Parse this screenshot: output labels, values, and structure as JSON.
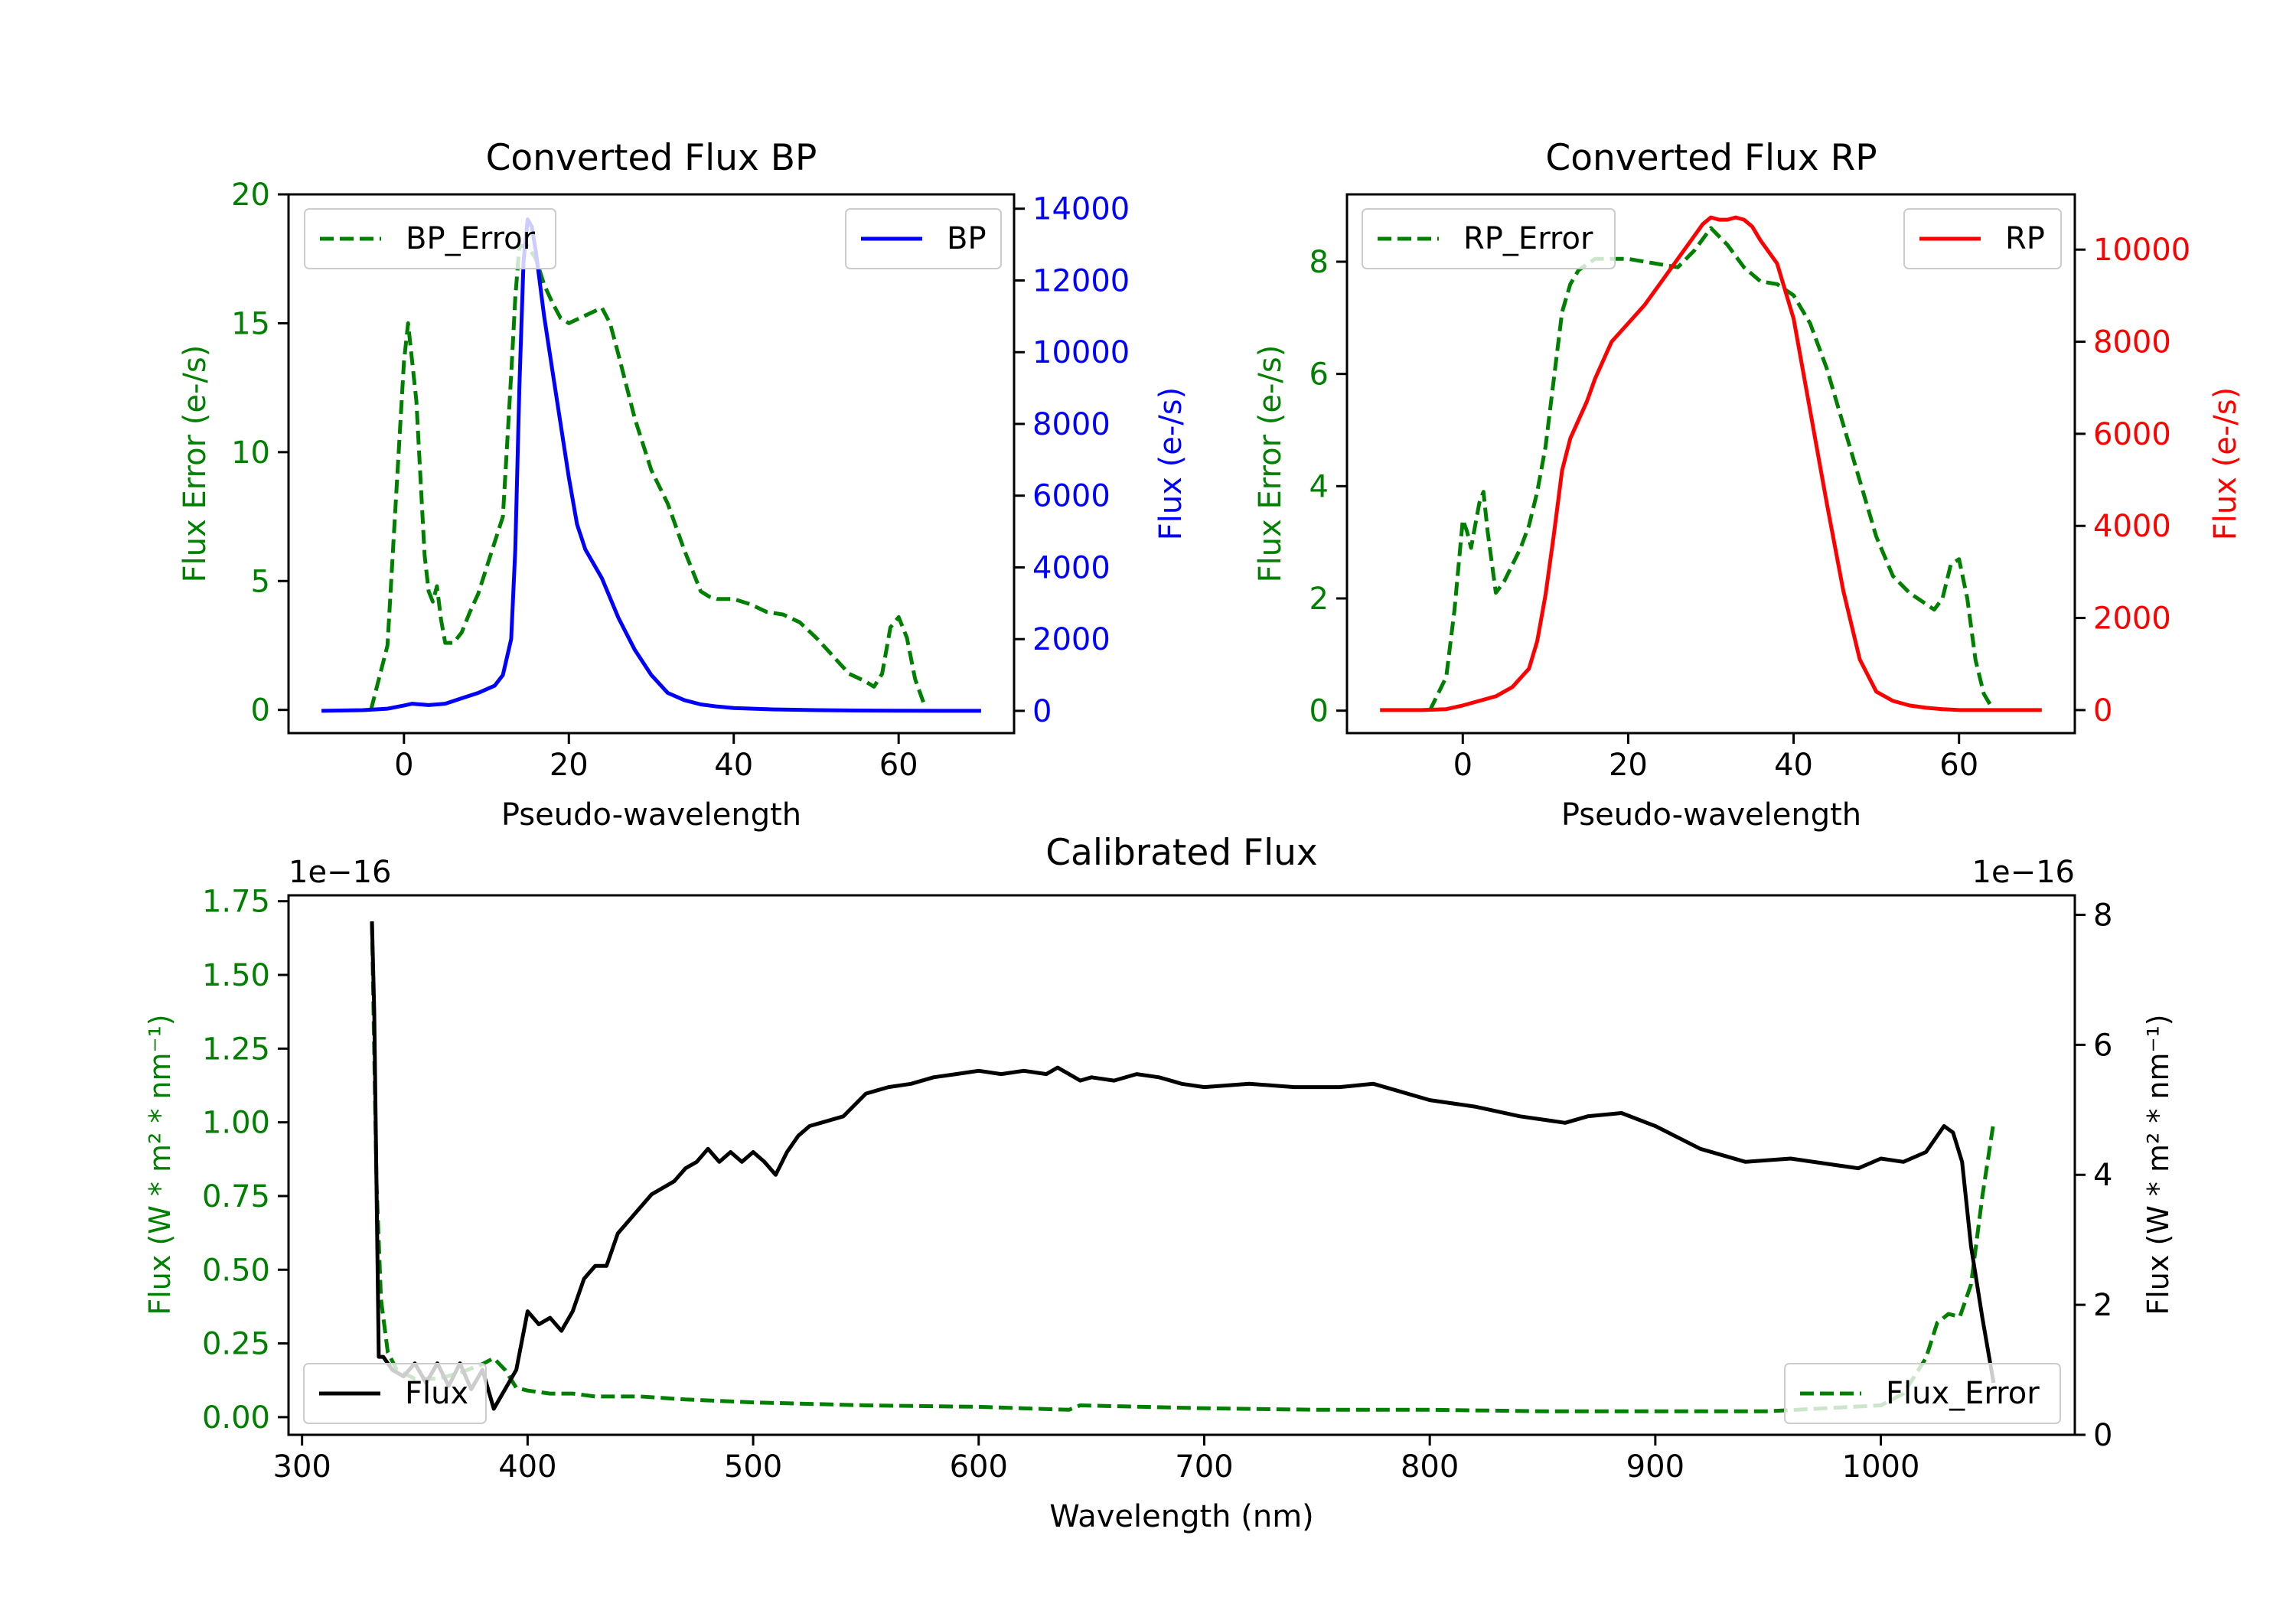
{
  "colors": {
    "bp": "#0000ff",
    "rp": "#ff0000",
    "error": "#008000",
    "flux": "#000000",
    "axis": "#000000"
  },
  "chart_data": [
    {
      "type": "line",
      "title": "Converted Flux BP",
      "xlabel": "Pseudo-wavelength",
      "ylabel": "Flux Error (e-/s)",
      "ylabel_right": "Flux (e-/s)",
      "xlim": [
        -14,
        74
      ],
      "ylim": [
        -0.9,
        20
      ],
      "ylim_right": [
        -620,
        14400
      ],
      "xticks": [
        0,
        20,
        40,
        60
      ],
      "yticks": [
        0,
        5,
        10,
        15,
        20
      ],
      "yticks_right": [
        0,
        2000,
        4000,
        6000,
        8000,
        10000,
        12000,
        14000
      ],
      "series": [
        {
          "name": "BP_Error",
          "axis": "left",
          "style": "dashed",
          "legend": "top-left",
          "x": [
            -4,
            -2,
            -1,
            0,
            0.5,
            1.5,
            2.5,
            3,
            3.5,
            4,
            4.5,
            5,
            6,
            7,
            8,
            9,
            10,
            11,
            12,
            13,
            13.5,
            14,
            15,
            16,
            17,
            18,
            19,
            20,
            22,
            24,
            25,
            26,
            28,
            30,
            32,
            34,
            36,
            37,
            38,
            40,
            42,
            44,
            46,
            48,
            50,
            52,
            54,
            56,
            57,
            58,
            59,
            60,
            61,
            62,
            63
          ],
          "y": [
            0,
            2.5,
            8,
            13.5,
            15,
            12,
            6,
            4.6,
            4.2,
            4.8,
            3.5,
            2.6,
            2.6,
            3,
            3.8,
            4.5,
            5.5,
            6.5,
            7.5,
            13,
            16,
            18,
            18,
            17.5,
            16.5,
            15.8,
            15.2,
            15,
            15.3,
            15.6,
            15,
            13.8,
            11.3,
            9.3,
            8,
            6.2,
            4.6,
            4.4,
            4.3,
            4.3,
            4.1,
            3.8,
            3.7,
            3.4,
            2.8,
            2.1,
            1.4,
            1.1,
            0.9,
            1.4,
            3.2,
            3.6,
            2.8,
            1.2,
            0.3
          ]
        },
        {
          "name": "BP",
          "axis": "right",
          "style": "solid",
          "legend": "top-right",
          "x": [
            -10,
            -5,
            -2,
            0,
            1,
            2,
            3,
            5,
            7,
            9,
            11,
            12,
            13,
            13.5,
            14,
            14.5,
            15,
            15.5,
            16,
            17,
            18,
            19,
            20,
            21,
            22,
            24,
            26,
            28,
            30,
            32,
            34,
            36,
            38,
            40,
            45,
            50,
            55,
            60,
            65,
            70
          ],
          "y": [
            0,
            20,
            60,
            150,
            200,
            180,
            160,
            200,
            350,
            500,
            700,
            1000,
            2000,
            4500,
            9000,
            12500,
            13700,
            13500,
            12800,
            11000,
            9500,
            8000,
            6500,
            5200,
            4500,
            3700,
            2600,
            1700,
            1000,
            500,
            300,
            180,
            120,
            80,
            40,
            20,
            10,
            5,
            0,
            0
          ]
        }
      ]
    },
    {
      "type": "line",
      "title": "Converted Flux RP",
      "xlabel": "Pseudo-wavelength",
      "ylabel": "Flux Error (e-/s)",
      "ylabel_right": "Flux (e-/s)",
      "xlim": [
        -14,
        74
      ],
      "ylim": [
        -0.4,
        9.2
      ],
      "ylim_right": [
        -500,
        11200
      ],
      "xticks": [
        0,
        20,
        40,
        60
      ],
      "yticks": [
        0,
        2,
        4,
        6,
        8
      ],
      "yticks_right": [
        0,
        2000,
        4000,
        6000,
        8000,
        10000
      ],
      "series": [
        {
          "name": "RP_Error",
          "axis": "left",
          "style": "dashed",
          "legend": "top-left",
          "x": [
            -4,
            -2,
            -1,
            0,
            0.5,
            1,
            2,
            2.5,
            3,
            4,
            5,
            6,
            7,
            8,
            9,
            10,
            11,
            12,
            13,
            14,
            15,
            16,
            18,
            20,
            22,
            24,
            26,
            28,
            30,
            32,
            34,
            36,
            38,
            40,
            42,
            44,
            46,
            48,
            50,
            52,
            54,
            56,
            57,
            58,
            59,
            60,
            61,
            62,
            63,
            64
          ],
          "y": [
            0,
            0.6,
            1.8,
            3.4,
            3.2,
            2.9,
            3.7,
            3.9,
            3.2,
            2.1,
            2.3,
            2.6,
            2.9,
            3.3,
            3.9,
            4.7,
            5.9,
            7.1,
            7.6,
            7.85,
            7.95,
            8.05,
            8.05,
            8.05,
            8.0,
            7.95,
            7.9,
            8.2,
            8.6,
            8.3,
            7.9,
            7.65,
            7.6,
            7.4,
            6.9,
            6.1,
            5.1,
            4.1,
            3.1,
            2.4,
            2.1,
            1.9,
            1.8,
            2.0,
            2.6,
            2.7,
            2.0,
            0.9,
            0.3,
            0.05
          ]
        },
        {
          "name": "RP",
          "axis": "right",
          "style": "solid",
          "legend": "top-right",
          "x": [
            -10,
            -5,
            -2,
            0,
            2,
            4,
            6,
            8,
            9,
            10,
            11,
            12,
            13,
            14,
            15,
            16,
            18,
            20,
            22,
            24,
            26,
            28,
            29,
            30,
            31,
            32,
            33,
            34,
            35,
            36,
            38,
            40,
            42,
            44,
            46,
            48,
            50,
            52,
            54,
            56,
            58,
            60,
            65,
            70
          ],
          "y": [
            0,
            0,
            20,
            100,
            200,
            300,
            500,
            900,
            1500,
            2500,
            3800,
            5200,
            5900,
            6300,
            6700,
            7200,
            8000,
            8400,
            8800,
            9300,
            9800,
            10300,
            10550,
            10700,
            10650,
            10650,
            10700,
            10650,
            10500,
            10200,
            9700,
            8500,
            6500,
            4500,
            2600,
            1100,
            400,
            200,
            100,
            50,
            20,
            0,
            0,
            0
          ]
        }
      ]
    },
    {
      "type": "line",
      "title": "Calibrated Flux",
      "xlabel": "Wavelength (nm)",
      "ylabel": "Flux (W * m² * nm⁻¹)",
      "ylabel_right": "Flux (W * m² * nm⁻¹)",
      "offset_left": "1e−16",
      "offset_right": "1e−16",
      "xlim": [
        294,
        1086
      ],
      "ylim": [
        -0.06,
        1.77
      ],
      "ylim_right": [
        0,
        8.3
      ],
      "xticks": [
        300,
        400,
        500,
        600,
        700,
        800,
        900,
        1000
      ],
      "yticks": [
        "0.00",
        "0.25",
        "0.50",
        "0.75",
        "1.00",
        "1.25",
        "1.50",
        "1.75"
      ],
      "yticks_right": [
        0,
        2,
        4,
        6,
        8
      ],
      "series": [
        {
          "name": "Flux_Error",
          "axis": "left",
          "style": "dashed",
          "legend": "bottom-right",
          "x": [
            331,
            333,
            335,
            338,
            342,
            350,
            360,
            370,
            380,
            385,
            390,
            395,
            400,
            410,
            420,
            430,
            450,
            470,
            500,
            550,
            600,
            640,
            645,
            700,
            750,
            800,
            850,
            900,
            950,
            1000,
            1010,
            1020,
            1025,
            1030,
            1035,
            1040,
            1045,
            1050
          ],
          "y": [
            1.68,
            0.8,
            0.4,
            0.22,
            0.16,
            0.13,
            0.13,
            0.15,
            0.18,
            0.2,
            0.16,
            0.1,
            0.09,
            0.08,
            0.08,
            0.07,
            0.07,
            0.06,
            0.05,
            0.04,
            0.035,
            0.025,
            0.04,
            0.03,
            0.025,
            0.025,
            0.02,
            0.02,
            0.02,
            0.04,
            0.08,
            0.2,
            0.32,
            0.35,
            0.34,
            0.45,
            0.75,
            1.0
          ]
        },
        {
          "name": "Flux",
          "axis": "right",
          "style": "solid",
          "legend": "bottom-left",
          "x": [
            331,
            332,
            334,
            336,
            340,
            345,
            350,
            355,
            360,
            365,
            370,
            375,
            380,
            385,
            390,
            395,
            400,
            405,
            410,
            415,
            420,
            425,
            430,
            435,
            440,
            445,
            450,
            455,
            460,
            465,
            470,
            475,
            480,
            485,
            490,
            495,
            500,
            505,
            510,
            515,
            520,
            525,
            530,
            540,
            550,
            560,
            570,
            580,
            590,
            600,
            610,
            620,
            630,
            635,
            640,
            645,
            650,
            660,
            670,
            680,
            690,
            700,
            720,
            740,
            760,
            775,
            785,
            800,
            820,
            840,
            850,
            860,
            870,
            885,
            900,
            920,
            940,
            960,
            980,
            990,
            1000,
            1010,
            1020,
            1028,
            1032,
            1036,
            1040,
            1045,
            1050
          ],
          "y": [
            7.9,
            6.5,
            1.2,
            1.2,
            1.0,
            0.9,
            1.1,
            0.8,
            1.1,
            0.75,
            1.1,
            0.7,
            1.0,
            0.4,
            0.7,
            1.0,
            1.9,
            1.7,
            1.8,
            1.6,
            1.9,
            2.4,
            2.6,
            2.6,
            3.1,
            3.3,
            3.5,
            3.7,
            3.8,
            3.9,
            4.1,
            4.2,
            4.4,
            4.2,
            4.35,
            4.2,
            4.35,
            4.2,
            4.0,
            4.35,
            4.6,
            4.75,
            4.8,
            4.9,
            5.25,
            5.35,
            5.4,
            5.5,
            5.55,
            5.6,
            5.55,
            5.6,
            5.55,
            5.65,
            5.55,
            5.45,
            5.5,
            5.45,
            5.55,
            5.5,
            5.4,
            5.35,
            5.4,
            5.35,
            5.35,
            5.4,
            5.3,
            5.15,
            5.05,
            4.9,
            4.85,
            4.8,
            4.9,
            4.95,
            4.75,
            4.4,
            4.2,
            4.25,
            4.15,
            4.1,
            4.25,
            4.2,
            4.35,
            4.75,
            4.65,
            4.2,
            2.9,
            1.8,
            0.8
          ]
        }
      ]
    }
  ]
}
